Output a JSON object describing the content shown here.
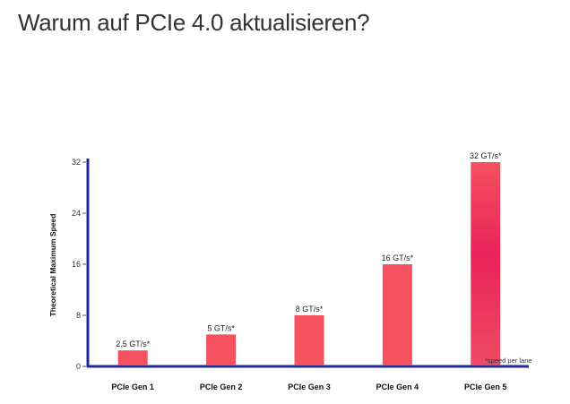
{
  "page": {
    "title": "Warum auf PCIe 4.0 aktualisieren?"
  },
  "colors": {
    "bar": "#f5515f",
    "bar_highlight": "#e9235a",
    "axis": "#1f2a9c",
    "text": "#333333"
  },
  "chart_data": {
    "type": "bar",
    "title": "",
    "ylabel": "Theoretical Maximum Speed",
    "xlabel": "",
    "ylim": [
      0,
      32
    ],
    "yticks": [
      0,
      8,
      16,
      24,
      32
    ],
    "categories": [
      "PCIe Gen 1",
      "PCIe Gen 2",
      "PCIe Gen 3",
      "PCIe Gen 4",
      "PCIe Gen 5"
    ],
    "values": [
      2.5,
      5,
      8,
      16,
      32
    ],
    "data_labels": [
      "2.5 GT/s*",
      "5 GT/s*",
      "8 GT/s*",
      "16 GT/s*",
      "32 GT/s*"
    ],
    "footnote": "*speed per lane"
  }
}
